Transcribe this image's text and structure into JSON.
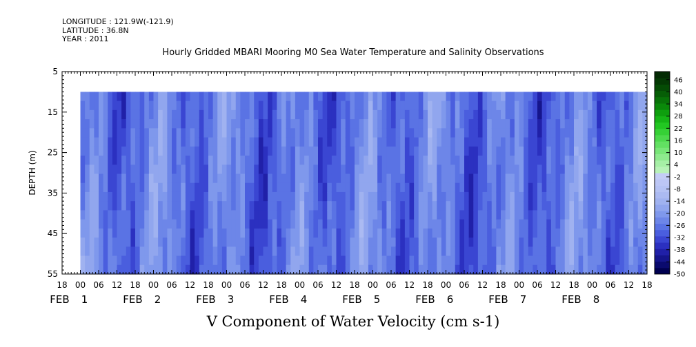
{
  "header": {
    "longitude": "LONGITUDE : 121.9W(-121.9)",
    "latitude": "LATITUDE : 36.8N",
    "year": "YEAR : 2011"
  },
  "chart_data": {
    "type": "heatmap",
    "title": "Hourly Gridded MBARI Mooring M0 Sea Water Temperature and Salinity Observations",
    "xlabel": "V Component of Water Velocity (cm s-1)",
    "ylabel": "DEPTH (m)",
    "ylim": [
      55,
      5
    ],
    "y_ticks": [
      "5",
      "15",
      "25",
      "35",
      "45",
      "55"
    ],
    "x_hour_ticks": [
      "18",
      "00",
      "06",
      "12",
      "18",
      "00",
      "06",
      "12",
      "18",
      "00",
      "06",
      "12",
      "18",
      "00",
      "06",
      "12",
      "18",
      "00",
      "06",
      "12",
      "18",
      "00",
      "06",
      "12",
      "18",
      "00",
      "06",
      "12",
      "18",
      "00",
      "06",
      "12",
      "18"
    ],
    "x_day_labels": [
      {
        "month": "FEB",
        "day": "1"
      },
      {
        "month": "FEB",
        "day": "2"
      },
      {
        "month": "FEB",
        "day": "3"
      },
      {
        "month": "FEB",
        "day": "4"
      },
      {
        "month": "FEB",
        "day": "5"
      },
      {
        "month": "FEB",
        "day": "6"
      },
      {
        "month": "FEB",
        "day": "7"
      },
      {
        "month": "FEB",
        "day": "8"
      }
    ],
    "xlim_hours": [
      -6,
      186
    ],
    "data_x_range_hours": [
      0,
      186
    ],
    "data_depth_range_m": [
      10,
      55
    ],
    "colorbar": {
      "min": -50,
      "max": 50,
      "labels": [
        "46",
        "40",
        "34",
        "28",
        "22",
        "16",
        "10",
        "4",
        "-2",
        "-8",
        "-14",
        "-20",
        "-26",
        "-32",
        "-38",
        "-44",
        "-50"
      ],
      "colors_negative": [
        "#000050",
        "#0a0a6e",
        "#15158c",
        "#2020a8",
        "#2b30c0",
        "#3a46d2",
        "#4a5ede",
        "#5a73e4",
        "#6d86e8",
        "#7f98ec",
        "#91a6ee",
        "#a0b2f0",
        "#abbaf2",
        "#b5c2f4",
        "#bcc6f5",
        "#c3ccf6"
      ],
      "colors_positive": [
        "#b8f2b8",
        "#a6efa6",
        "#8eea8e",
        "#78e678",
        "#62e062",
        "#4cd94c",
        "#36d136",
        "#22c722",
        "#16b516",
        "#0e9f0e",
        "#0a890a",
        "#087308",
        "#065e06",
        "#054b05",
        "#043904",
        "#032a03"
      ]
    },
    "grid": false,
    "legend": "colorbar-right"
  }
}
